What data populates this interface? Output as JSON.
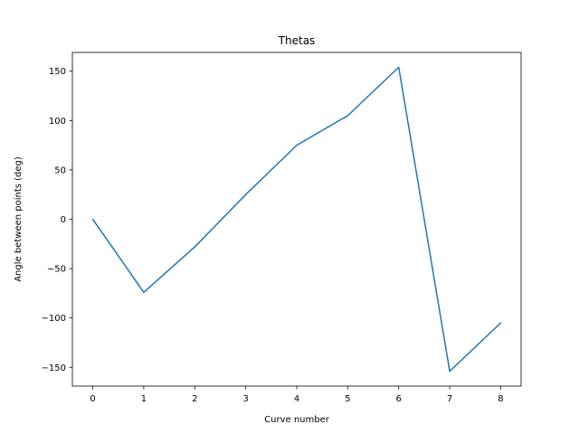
{
  "chart_data": {
    "type": "line",
    "title": "Thetas",
    "xlabel": "Curve number",
    "ylabel": "Angle between points (deg)",
    "x": [
      0,
      1,
      2,
      3,
      4,
      5,
      6,
      7,
      8
    ],
    "series": [
      {
        "values": [
          0,
          -74,
          -28,
          25,
          75,
          105,
          154,
          -154,
          -105
        ],
        "color": "#1f77b4"
      }
    ],
    "xlim": [
      -0.4,
      8.4
    ],
    "ylim": [
      -169,
      169
    ],
    "xticks": [
      0,
      1,
      2,
      3,
      4,
      5,
      6,
      7,
      8
    ],
    "yticks": [
      -150,
      -100,
      -50,
      0,
      50,
      100,
      150
    ],
    "grid": false,
    "legend": "none"
  }
}
